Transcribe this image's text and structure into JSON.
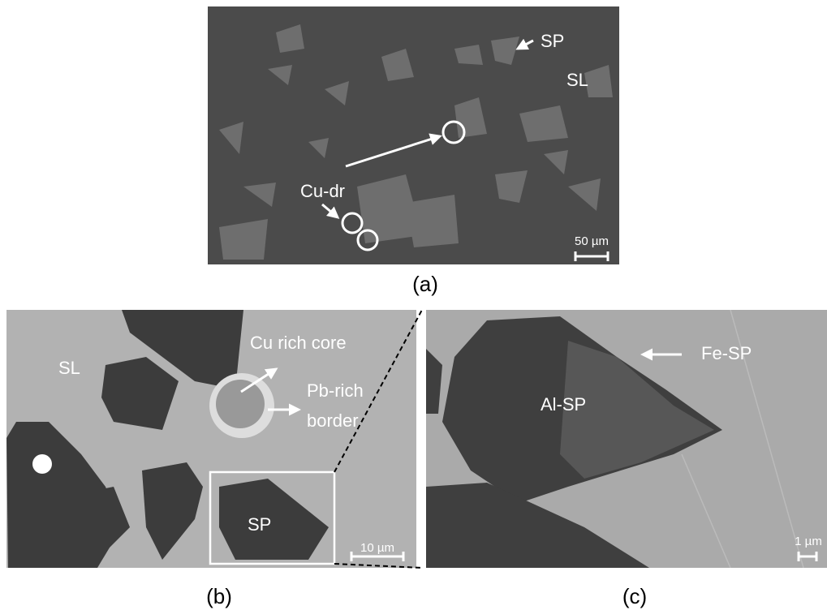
{
  "panels": [
    {
      "label": "(a)",
      "annotations": [
        "SP",
        "SL",
        "Cu-dr"
      ],
      "scale_bar": "50 µm"
    },
    {
      "label": "(b)",
      "annotations": [
        "SL",
        "Cu rich core",
        "Pb-rich",
        "border",
        "SP"
      ],
      "scale_bar": "10 µm"
    },
    {
      "label": "(c)",
      "annotations": [
        "Al-SP",
        "Fe-SP"
      ],
      "scale_bar": "1 µm"
    }
  ]
}
